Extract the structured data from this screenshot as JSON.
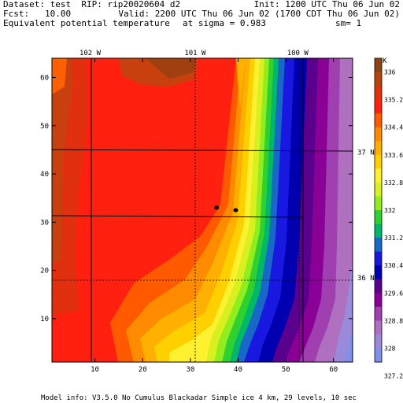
{
  "header": {
    "dataset": "Dataset: test  RIP: rip20020604 d2",
    "init": "Init: 1200 UTC Thu 06 Jun 02",
    "fcst": "Fcst:   10.00",
    "valid": "Valid: 2200 UTC Thu 06 Jun 02 (1700 CDT Thu 06 Jun 02)",
    "field": "Equivalent potential temperature",
    "sigma": "at sigma = 0.983",
    "sm": "sm= 1"
  },
  "footer": {
    "model_info": "Model info: V3.5.0 No Cumulus Blackadar  Simple ice    4 km,  29 levels,   10 sec"
  },
  "map": {
    "x_ticks": [
      10,
      20,
      30,
      40,
      50,
      60
    ],
    "y_ticks": [
      10,
      20,
      30,
      40,
      50,
      60
    ],
    "x_range": [
      1,
      64
    ],
    "y_range": [
      1,
      64
    ],
    "lon_labels": [
      {
        "text": "102 W",
        "x": 9
      },
      {
        "text": "101 W",
        "x": 31
      },
      {
        "text": "100 W",
        "x": 52.5
      }
    ],
    "lat_labels": [
      {
        "text": "37 N",
        "y": 44.5
      },
      {
        "text": "36 N",
        "y": 18.5
      }
    ],
    "markers": [
      {
        "x": 35.5,
        "y": 33
      },
      {
        "x": 39.5,
        "y": 32.5
      }
    ]
  },
  "colorbar": {
    "unit": "K",
    "labels": [
      "336",
      "335.2",
      "334.4",
      "333.6",
      "332.8",
      "332",
      "331.2",
      "330.4",
      "329.6",
      "328.8",
      "328",
      "327.2"
    ],
    "colors": [
      "#8B4513",
      "#B8440F",
      "#E03010",
      "#FF2010",
      "#FF5A00",
      "#FF8C00",
      "#FFB000",
      "#FFD000",
      "#FFF030",
      "#D8F020",
      "#90EE20",
      "#30D030",
      "#00B868",
      "#1868C8",
      "#1818E0",
      "#0000B0",
      "#5A008C",
      "#8A0096",
      "#A040B0",
      "#B070C0",
      "#9A8ADC",
      "#8090E8"
    ]
  }
}
